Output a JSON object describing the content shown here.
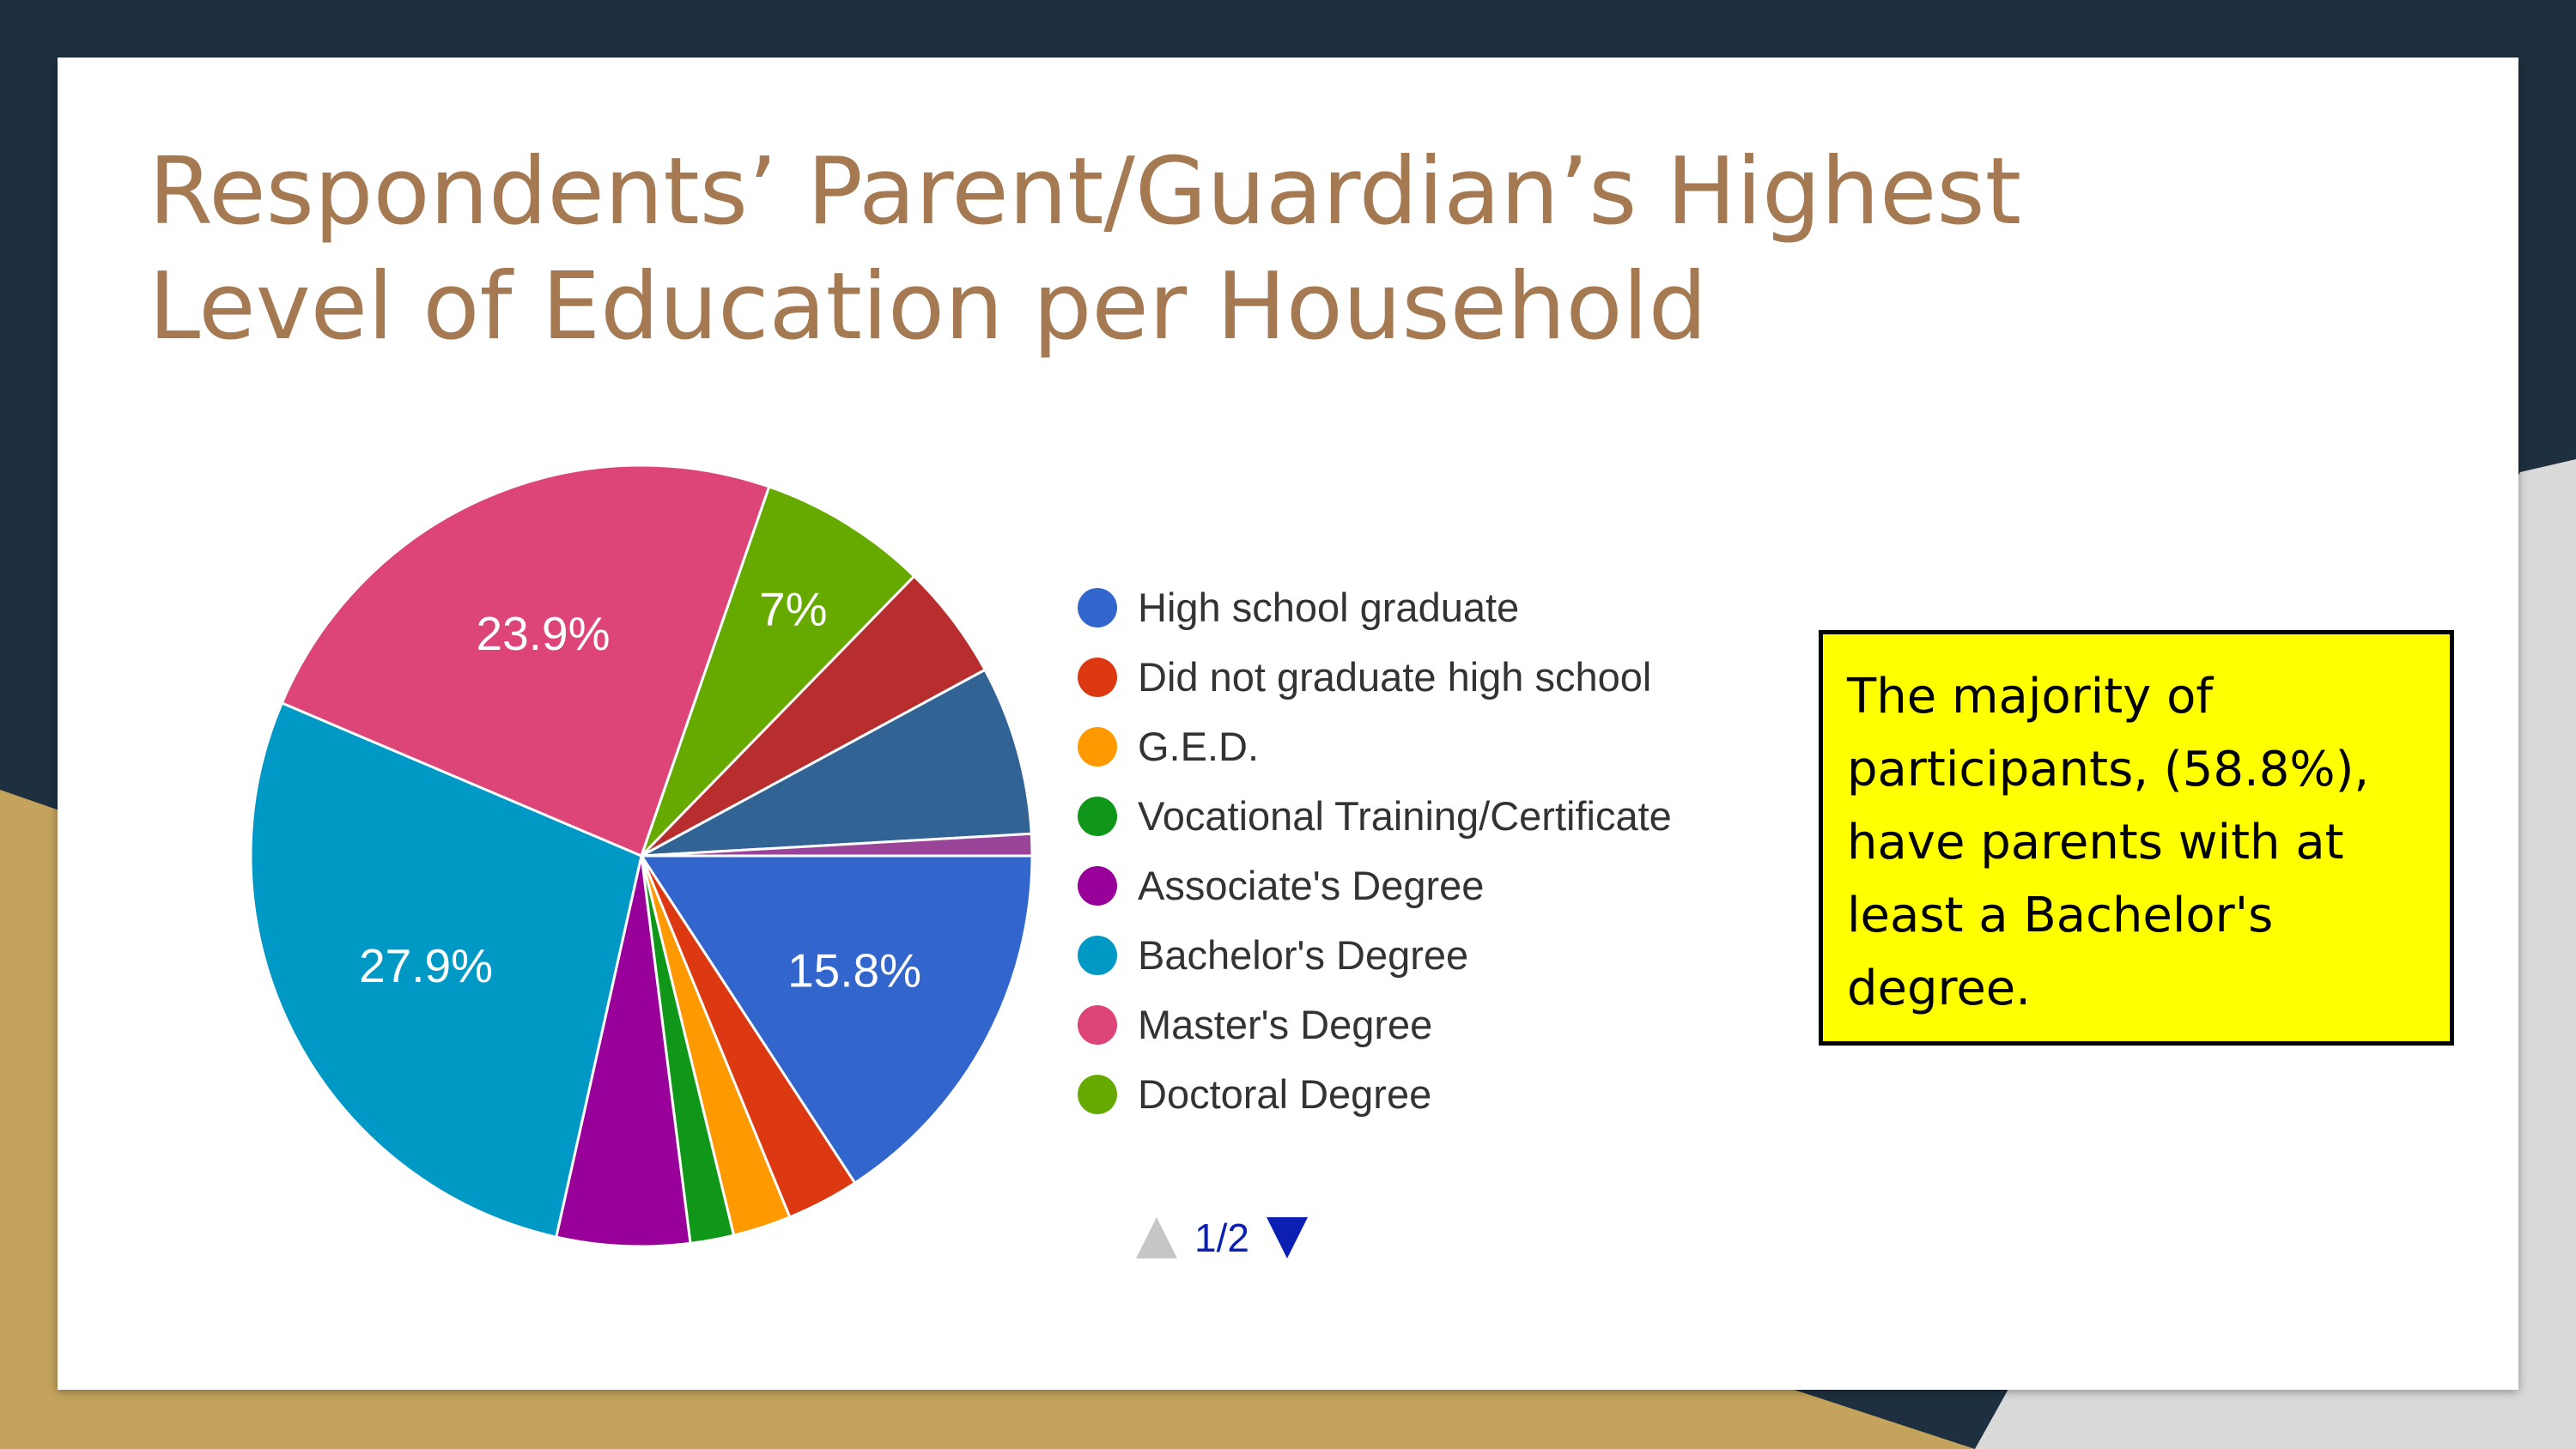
{
  "slide": {
    "title": "Respondents’ Parent/Guardian’s Highest Level of Education per Household",
    "callout_text": "The majority of participants, (58.8%), have parents with at least a Bachelor's degree."
  },
  "legend_pager": {
    "text": "1/2",
    "up_icon": "triangle-up-icon",
    "down_icon": "triangle-down-icon"
  },
  "colors": {
    "background_dark": "#1e3040",
    "background_gold": "#c4a35c",
    "background_gray": "#d9d9d9",
    "title": "#a57a52",
    "callout_fill": "#ffff00"
  },
  "chart_data": {
    "type": "pie",
    "title": "",
    "legend_position": "right",
    "start_angle_deg": 0,
    "direction": "clockwise",
    "slices": [
      {
        "label": "High school graduate",
        "value": 15.8,
        "display": "15.8%",
        "color": "#3366cc",
        "in_legend": true
      },
      {
        "label": "Did not graduate high school",
        "value": 3.0,
        "display": "",
        "color": "#dc3912",
        "in_legend": true
      },
      {
        "label": "G.E.D.",
        "value": 2.4,
        "display": "",
        "color": "#ff9900",
        "in_legend": true
      },
      {
        "label": "Vocational Training/Certificate",
        "value": 1.8,
        "display": "",
        "color": "#109618",
        "in_legend": true
      },
      {
        "label": "Associate's Degree",
        "value": 5.5,
        "display": "",
        "color": "#990099",
        "in_legend": true
      },
      {
        "label": "Bachelor's Degree",
        "value": 27.9,
        "display": "27.9%",
        "color": "#0099c6",
        "in_legend": true
      },
      {
        "label": "Master's Degree",
        "value": 23.9,
        "display": "23.9%",
        "color": "#dd4477",
        "in_legend": true
      },
      {
        "label": "Doctoral Degree",
        "value": 7.0,
        "display": "7%",
        "color": "#66aa00",
        "in_legend": true
      },
      {
        "label": "",
        "value": 4.8,
        "display": "",
        "color": "#b82e2e",
        "in_legend": false
      },
      {
        "label": "",
        "value": 7.0,
        "display": "",
        "color": "#316395",
        "in_legend": false
      },
      {
        "label": "",
        "value": 0.9,
        "display": "",
        "color": "#994499",
        "in_legend": false
      }
    ]
  }
}
